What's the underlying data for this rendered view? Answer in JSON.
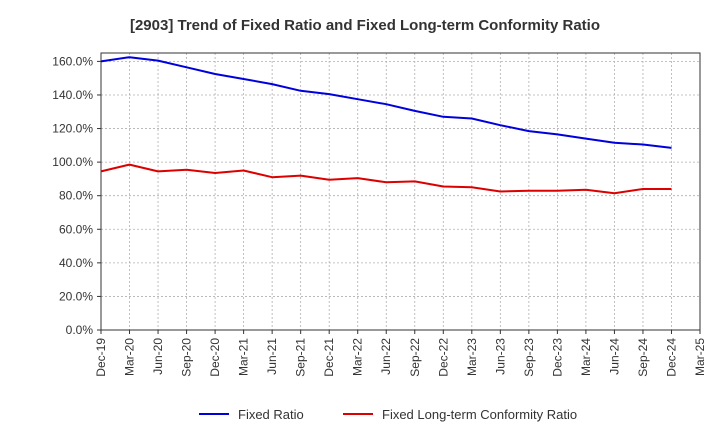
{
  "chart_data": {
    "type": "line",
    "title": "[2903]  Trend of Fixed Ratio and Fixed Long-term Conformity Ratio",
    "xlabel": "",
    "ylabel": "",
    "ylim": [
      0,
      165
    ],
    "yticks": [
      0,
      20,
      40,
      60,
      80,
      100,
      120,
      140,
      160
    ],
    "ytick_labels": [
      "0.0%",
      "20.0%",
      "40.0%",
      "60.0%",
      "80.0%",
      "100.0%",
      "120.0%",
      "140.0%",
      "160.0%"
    ],
    "x": [
      "Dec-19",
      "Mar-20",
      "Jun-20",
      "Sep-20",
      "Dec-20",
      "Mar-21",
      "Jun-21",
      "Sep-21",
      "Dec-21",
      "Mar-22",
      "Jun-22",
      "Sep-22",
      "Dec-22",
      "Mar-23",
      "Jun-23",
      "Sep-23",
      "Dec-23",
      "Mar-24",
      "Jun-24",
      "Sep-24",
      "Dec-24"
    ],
    "xtick_labels": [
      "Dec-19",
      "Mar-20",
      "Jun-20",
      "Sep-20",
      "Dec-20",
      "Mar-21",
      "Jun-21",
      "Sep-21",
      "Dec-21",
      "Mar-22",
      "Jun-22",
      "Sep-22",
      "Dec-22",
      "Mar-23",
      "Jun-23",
      "Sep-23",
      "Dec-23",
      "Mar-24",
      "Jun-24",
      "Sep-24",
      "Dec-24",
      "Mar-25"
    ],
    "grid": true,
    "legend_position": "bottom-center",
    "series": [
      {
        "name": "Fixed Ratio",
        "color": "#0000dd",
        "values": [
          160.0,
          162.5,
          160.5,
          156.5,
          152.5,
          149.5,
          146.5,
          142.5,
          140.5,
          137.5,
          134.5,
          130.5,
          127.0,
          126.0,
          122.0,
          118.5,
          116.5,
          114.0,
          111.5,
          110.5,
          108.5
        ]
      },
      {
        "name": "Fixed Long-term Conformity Ratio",
        "color": "#dd0000",
        "values": [
          94.5,
          98.5,
          94.5,
          95.5,
          93.5,
          95.0,
          91.0,
          92.0,
          89.5,
          90.5,
          88.0,
          88.5,
          85.5,
          85.0,
          82.5,
          83.0,
          83.0,
          83.5,
          81.5,
          84.0,
          84.0
        ]
      }
    ]
  }
}
